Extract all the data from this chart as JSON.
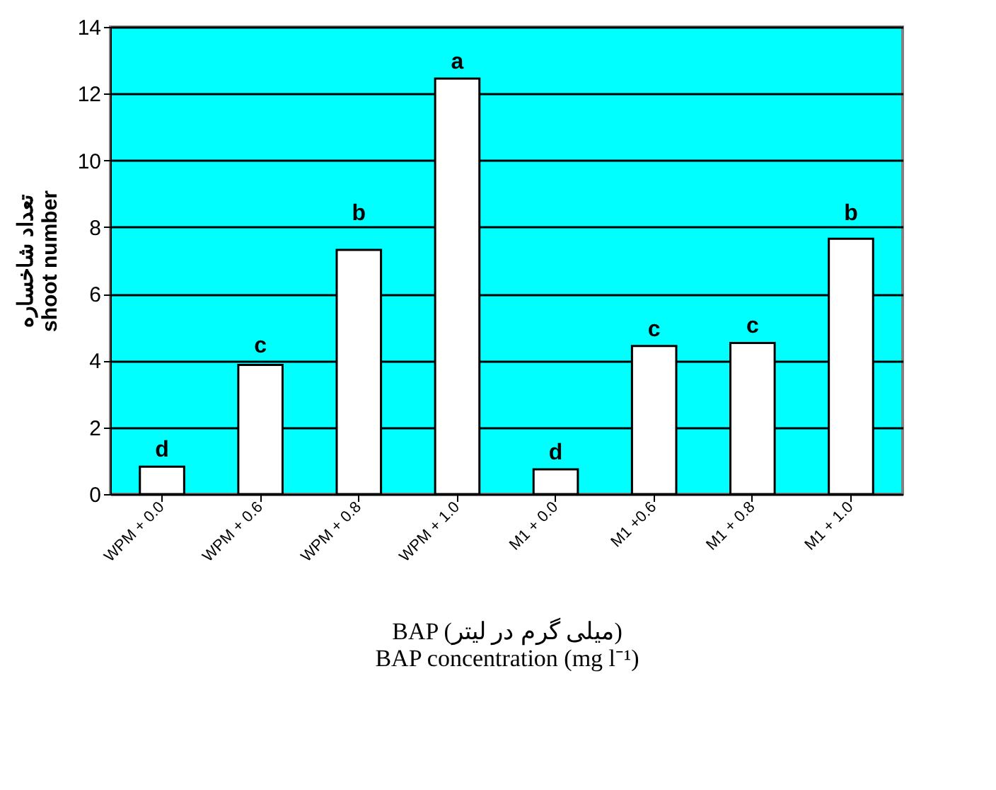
{
  "chart_data": {
    "type": "bar",
    "xlabel": [
      "BAP (میلی گرم در لیتر)",
      "BAP concentration (mg l⁻¹)"
    ],
    "ylabel": [
      "تعداد شاخساره",
      "shoot number"
    ],
    "categories": [
      "WPM + 0.0",
      "WPM + 0.6",
      "WPM + 0.8",
      "WPM + 1.0",
      "M1 + 0.0",
      "M1 +0.6",
      "M1 + 0.8",
      "M1 + 1.0"
    ],
    "values": [
      0.82,
      3.87,
      7.32,
      12.45,
      0.74,
      4.44,
      4.53,
      7.65
    ],
    "value_labels": [
      "d",
      "c",
      "b",
      "a",
      "d",
      "c",
      "c",
      "b"
    ],
    "color": "#ffffff",
    "ylim": [
      0,
      14
    ],
    "yticks": [
      0,
      2,
      4,
      6,
      8,
      10,
      12,
      14
    ],
    "grid": "y"
  }
}
